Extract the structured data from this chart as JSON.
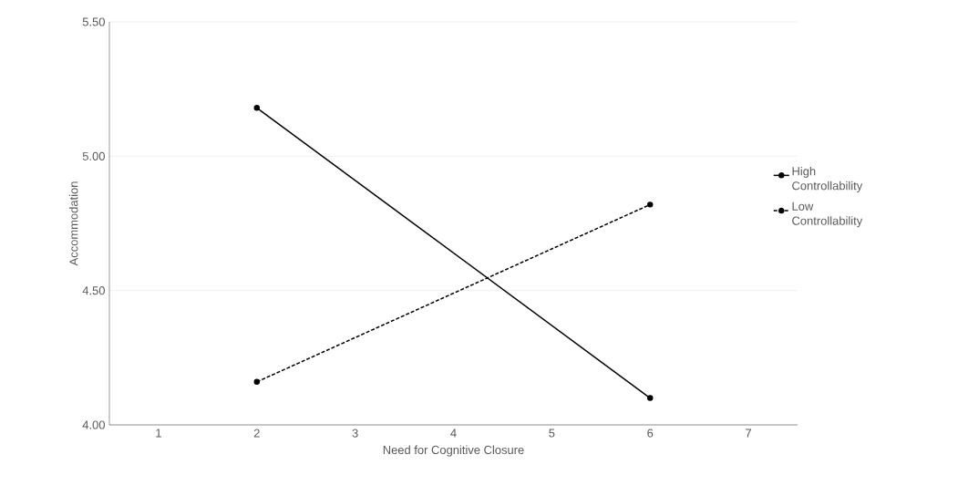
{
  "chart_data": {
    "type": "line",
    "xlabel": "Need for Cognitive Closure",
    "ylabel": "Accommodation",
    "categories": [
      "1",
      "2",
      "3",
      "4",
      "5",
      "6",
      "7"
    ],
    "ylim": [
      4.0,
      5.5
    ],
    "yticks": [
      {
        "value": 4.0,
        "label": "4.00"
      },
      {
        "value": 4.5,
        "label": "4.50"
      },
      {
        "value": 5.0,
        "label": "5.00"
      },
      {
        "value": 5.5,
        "label": "5.50"
      }
    ],
    "grid": "y",
    "legend": "right",
    "marker": "circle",
    "series": [
      {
        "name": "High Controllability",
        "color": "#000000",
        "line_style": "solid",
        "values": [
          null,
          5.18,
          null,
          null,
          null,
          4.1,
          null
        ]
      },
      {
        "name": "Low Controllability",
        "color": "#000000",
        "line_style": "dashed",
        "values": [
          null,
          4.16,
          null,
          null,
          null,
          4.82,
          null
        ]
      }
    ]
  }
}
